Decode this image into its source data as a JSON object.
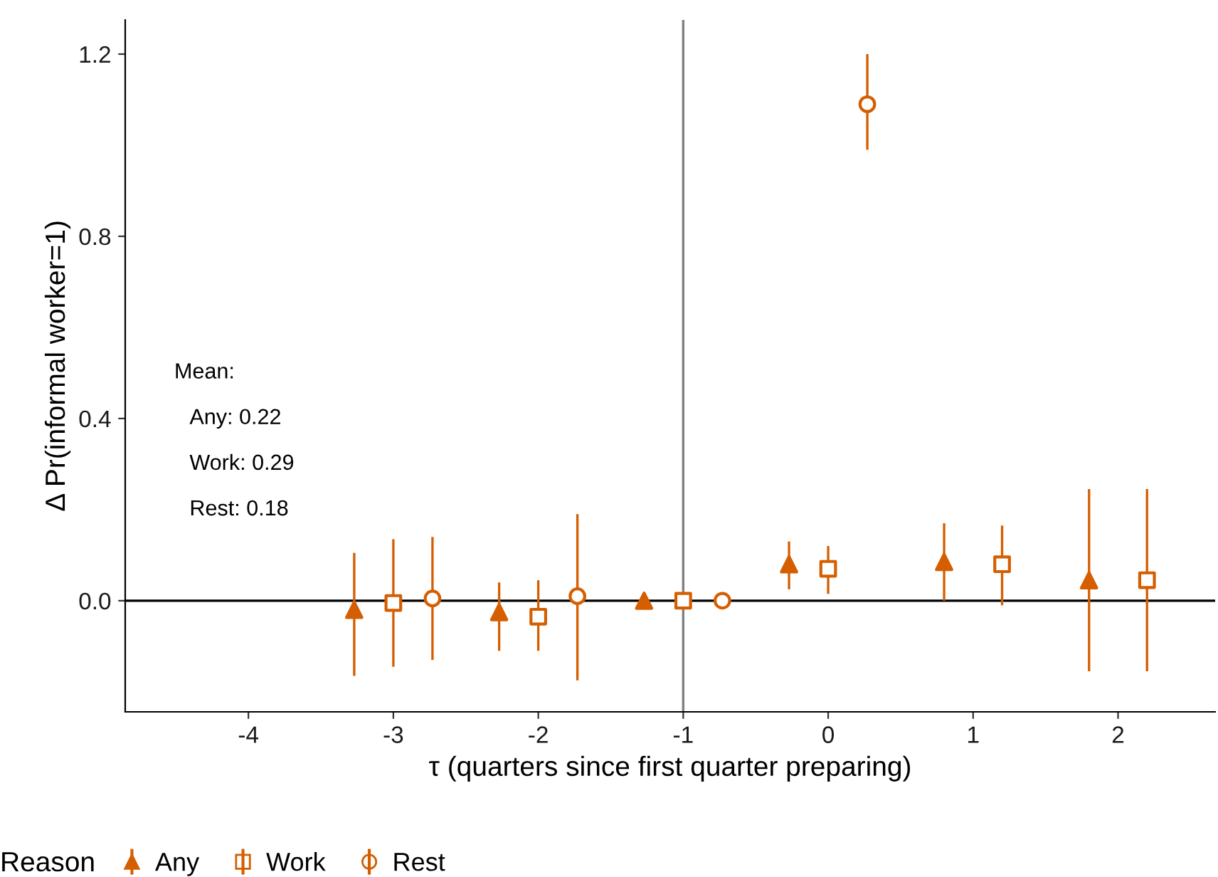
{
  "chart_data": {
    "type": "scatter",
    "xlabel": "τ (quarters since first quarter preparing)",
    "ylabel": "Δ Pr(informal worker=1)",
    "legend_title": "Reason",
    "legend": "bottom",
    "grid": false,
    "xlim": [
      -4.85,
      2.67
    ],
    "ylim": [
      -0.244,
      1.275
    ],
    "xticks": [
      -4,
      -3,
      -2,
      -1,
      0,
      1,
      2
    ],
    "yticks": [
      {
        "value": 0,
        "label": "0.0"
      },
      0.4,
      0.8,
      1.2
    ],
    "series": [
      {
        "name": "Any",
        "color": "#d55e00",
        "marker": "triangle",
        "x": [
          -3.27,
          -2.27,
          -1.27,
          -0.27,
          0.8,
          1.8
        ],
        "values": [
          -0.02,
          -0.025,
          0.0,
          0.08,
          0.085,
          0.045
        ],
        "errors": [
          [
            -0.165,
            0.105
          ],
          [
            -0.11,
            0.04
          ],
          null,
          [
            0.025,
            0.13
          ],
          [
            0.0,
            0.17
          ],
          [
            -0.155,
            0.245
          ]
        ]
      },
      {
        "name": "Work",
        "color": "#d55e00",
        "marker": "square",
        "x": [
          -3,
          -2,
          -1,
          0,
          1.2,
          2.2
        ],
        "values": [
          -0.005,
          -0.035,
          0.0,
          0.07,
          0.08,
          0.045
        ],
        "errors": [
          [
            -0.145,
            0.135
          ],
          [
            -0.11,
            0.045
          ],
          null,
          [
            0.015,
            0.12
          ],
          [
            -0.01,
            0.165
          ],
          [
            -0.155,
            0.245
          ]
        ]
      },
      {
        "name": "Rest",
        "color": "#d55e00",
        "marker": "circle",
        "x": [
          -2.73,
          -1.73,
          -0.73,
          0.27
        ],
        "values": [
          0.005,
          0.01,
          0.0,
          1.09
        ],
        "errors": [
          [
            -0.13,
            0.14
          ],
          [
            -0.175,
            0.19
          ],
          null,
          [
            0.99,
            1.2
          ]
        ]
      }
    ],
    "ref_lines": [
      {
        "axis": "x",
        "value": -1,
        "color": "#808080"
      },
      {
        "axis": "y",
        "value": 0,
        "color": "#000000"
      }
    ],
    "annotations": [
      "Mean:",
      "Any: 0.22",
      "Work: 0.29",
      "Rest: 0.18"
    ]
  }
}
